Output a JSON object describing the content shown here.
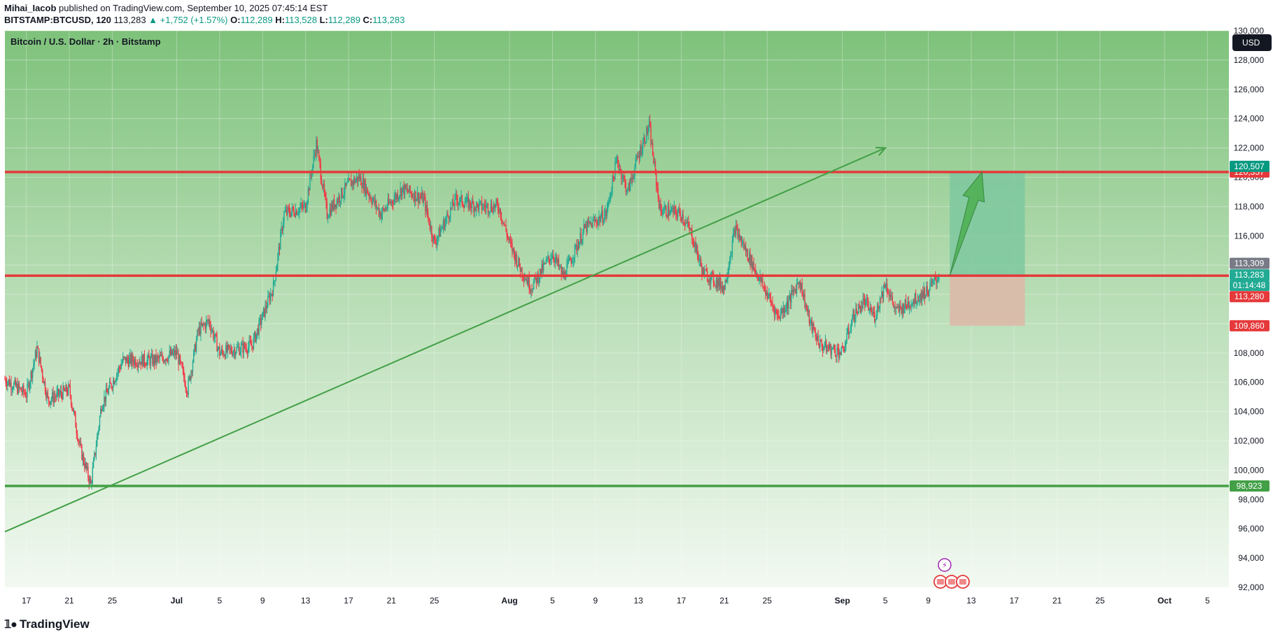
{
  "header": {
    "author": "Mihai_Iacob",
    "published_text": " published on TradingView.com, September 10, 2025 07:45:14 EST",
    "symbol": "BITSTAMP:BTCUSD, 120",
    "last": "113,283",
    "change": "▲ +1,752 (+1.57%)",
    "o_label": "O:",
    "o": "112,289",
    "h_label": "H:",
    "h": "113,528",
    "l_label": "L:",
    "l": "112,289",
    "c_label": "C:",
    "c": "113,283"
  },
  "chart_title": "Bitcoin / U.S. Dollar · 2h · Bitstamp",
  "currency": "USD",
  "footer": {
    "logo_text": "TradingView"
  },
  "colors": {
    "red_line": "#e5393b",
    "green_line": "#43a047",
    "teal": "#089981",
    "up_candle": "#22ab94",
    "down_candle": "#f23645",
    "target_zone": "#7ec8a0",
    "stop_zone": "#dcb9a8"
  },
  "chart_data": {
    "type": "candlestick",
    "title": "Bitcoin / U.S. Dollar · 2h · Bitstamp",
    "ylim": [
      92000,
      130000
    ],
    "y_ticks": [
      "92,000",
      "94,000",
      "96,000",
      "98,000",
      "100,000",
      "102,000",
      "104,000",
      "106,000",
      "108,000",
      "110,000",
      "112,000",
      "114,000",
      "116,000",
      "118,000",
      "120,000",
      "122,000",
      "124,000",
      "126,000",
      "128,000",
      "130,000"
    ],
    "x_range": [
      "2025-06-15",
      "2025-10-07"
    ],
    "x_ticks": [
      {
        "label": "17",
        "date": "2025-06-17"
      },
      {
        "label": "21",
        "date": "2025-06-21"
      },
      {
        "label": "25",
        "date": "2025-06-25"
      },
      {
        "label": "Jul",
        "date": "2025-07-01"
      },
      {
        "label": "5",
        "date": "2025-07-05"
      },
      {
        "label": "9",
        "date": "2025-07-09"
      },
      {
        "label": "13",
        "date": "2025-07-13"
      },
      {
        "label": "17",
        "date": "2025-07-17"
      },
      {
        "label": "21",
        "date": "2025-07-21"
      },
      {
        "label": "25",
        "date": "2025-07-25"
      },
      {
        "label": "Aug",
        "date": "2025-08-01"
      },
      {
        "label": "5",
        "date": "2025-08-05"
      },
      {
        "label": "9",
        "date": "2025-08-09"
      },
      {
        "label": "13",
        "date": "2025-08-13"
      },
      {
        "label": "17",
        "date": "2025-08-17"
      },
      {
        "label": "21",
        "date": "2025-08-21"
      },
      {
        "label": "25",
        "date": "2025-08-25"
      },
      {
        "label": "Sep",
        "date": "2025-09-01"
      },
      {
        "label": "5",
        "date": "2025-09-05"
      },
      {
        "label": "9",
        "date": "2025-09-09"
      },
      {
        "label": "13",
        "date": "2025-09-13"
      },
      {
        "label": "17",
        "date": "2025-09-17"
      },
      {
        "label": "21",
        "date": "2025-09-21"
      },
      {
        "label": "25",
        "date": "2025-09-25"
      },
      {
        "label": "Oct",
        "date": "2025-10-01"
      },
      {
        "label": "5",
        "date": "2025-10-05"
      }
    ],
    "price_path": [
      {
        "date": "2025-06-15",
        "price": 106200
      },
      {
        "date": "2025-06-17",
        "price": 105200
      },
      {
        "date": "2025-06-18",
        "price": 108300
      },
      {
        "date": "2025-06-19",
        "price": 104800
      },
      {
        "date": "2025-06-21",
        "price": 105500
      },
      {
        "date": "2025-06-22",
        "price": 101500
      },
      {
        "date": "2025-06-23",
        "price": 99000
      },
      {
        "date": "2025-06-24",
        "price": 104500
      },
      {
        "date": "2025-06-26",
        "price": 107500
      },
      {
        "date": "2025-06-29",
        "price": 107500
      },
      {
        "date": "2025-07-01",
        "price": 108000
      },
      {
        "date": "2025-07-02",
        "price": 105500
      },
      {
        "date": "2025-07-03",
        "price": 109500
      },
      {
        "date": "2025-07-04",
        "price": 110200
      },
      {
        "date": "2025-07-05",
        "price": 108000
      },
      {
        "date": "2025-07-08",
        "price": 108500
      },
      {
        "date": "2025-07-09",
        "price": 110500
      },
      {
        "date": "2025-07-10",
        "price": 112500
      },
      {
        "date": "2025-07-11",
        "price": 117500
      },
      {
        "date": "2025-07-13",
        "price": 118000
      },
      {
        "date": "2025-07-14",
        "price": 122300
      },
      {
        "date": "2025-07-15",
        "price": 117500
      },
      {
        "date": "2025-07-17",
        "price": 119500
      },
      {
        "date": "2025-07-18",
        "price": 120000
      },
      {
        "date": "2025-07-20",
        "price": 117500
      },
      {
        "date": "2025-07-22",
        "price": 119200
      },
      {
        "date": "2025-07-24",
        "price": 118500
      },
      {
        "date": "2025-07-25",
        "price": 115500
      },
      {
        "date": "2025-07-27",
        "price": 118500
      },
      {
        "date": "2025-07-29",
        "price": 118000
      },
      {
        "date": "2025-07-31",
        "price": 118000
      },
      {
        "date": "2025-08-01",
        "price": 115500
      },
      {
        "date": "2025-08-02",
        "price": 113800
      },
      {
        "date": "2025-08-03",
        "price": 112500
      },
      {
        "date": "2025-08-05",
        "price": 114800
      },
      {
        "date": "2025-08-06",
        "price": 113200
      },
      {
        "date": "2025-08-08",
        "price": 116500
      },
      {
        "date": "2025-08-10",
        "price": 117500
      },
      {
        "date": "2025-08-11",
        "price": 121200
      },
      {
        "date": "2025-08-12",
        "price": 119000
      },
      {
        "date": "2025-08-13",
        "price": 121500
      },
      {
        "date": "2025-08-14",
        "price": 123500
      },
      {
        "date": "2025-08-15",
        "price": 117800
      },
      {
        "date": "2025-08-17",
        "price": 117500
      },
      {
        "date": "2025-08-18",
        "price": 116000
      },
      {
        "date": "2025-08-19",
        "price": 113500
      },
      {
        "date": "2025-08-20",
        "price": 113000
      },
      {
        "date": "2025-08-21",
        "price": 112500
      },
      {
        "date": "2025-08-22",
        "price": 116500
      },
      {
        "date": "2025-08-23",
        "price": 115000
      },
      {
        "date": "2025-08-24",
        "price": 113500
      },
      {
        "date": "2025-08-26",
        "price": 110500
      },
      {
        "date": "2025-08-27",
        "price": 111500
      },
      {
        "date": "2025-08-28",
        "price": 113000
      },
      {
        "date": "2025-08-29",
        "price": 110000
      },
      {
        "date": "2025-08-30",
        "price": 108500
      },
      {
        "date": "2025-09-01",
        "price": 108000
      },
      {
        "date": "2025-09-02",
        "price": 110500
      },
      {
        "date": "2025-09-03",
        "price": 111500
      },
      {
        "date": "2025-09-04",
        "price": 110500
      },
      {
        "date": "2025-09-05",
        "price": 112800
      },
      {
        "date": "2025-09-06",
        "price": 110800
      },
      {
        "date": "2025-09-08",
        "price": 111800
      },
      {
        "date": "2025-09-09",
        "price": 112300
      },
      {
        "date": "2025-09-10",
        "price": 113283
      }
    ],
    "horizontal_lines": [
      {
        "name": "resistance",
        "value": 120357,
        "label": "120,357",
        "color": "#e5393b"
      },
      {
        "name": "support",
        "value": 113280,
        "label": "113,280",
        "color": "#e5393b"
      },
      {
        "name": "floor",
        "value": 98923,
        "label": "98,923",
        "color": "#43a047"
      }
    ],
    "price_tags": [
      {
        "label": "120,507",
        "value": 120507,
        "color": "#089981"
      },
      {
        "label": "113,309",
        "value": 113309,
        "color": "#787b86"
      },
      {
        "label": "113,283",
        "value": 113283,
        "color": "#22ab94"
      },
      {
        "label": "01:14:48",
        "value": 113283,
        "color": "#22ab94"
      },
      {
        "label": "109,860",
        "value": 109860,
        "color": "#e5393b"
      }
    ],
    "trendline": {
      "start": {
        "date": "2025-06-15",
        "price": 95800
      },
      "end": {
        "date": "2025-09-05",
        "price": 122000
      }
    },
    "position": {
      "start_date": "2025-09-11",
      "end_date": "2025-09-18",
      "entry": 113280,
      "target": 120357,
      "stop": 109860
    },
    "projection_arrow": {
      "from": {
        "date": "2025-09-11",
        "price": 113280
      },
      "to": {
        "date": "2025-09-14",
        "price": 120357
      }
    }
  }
}
